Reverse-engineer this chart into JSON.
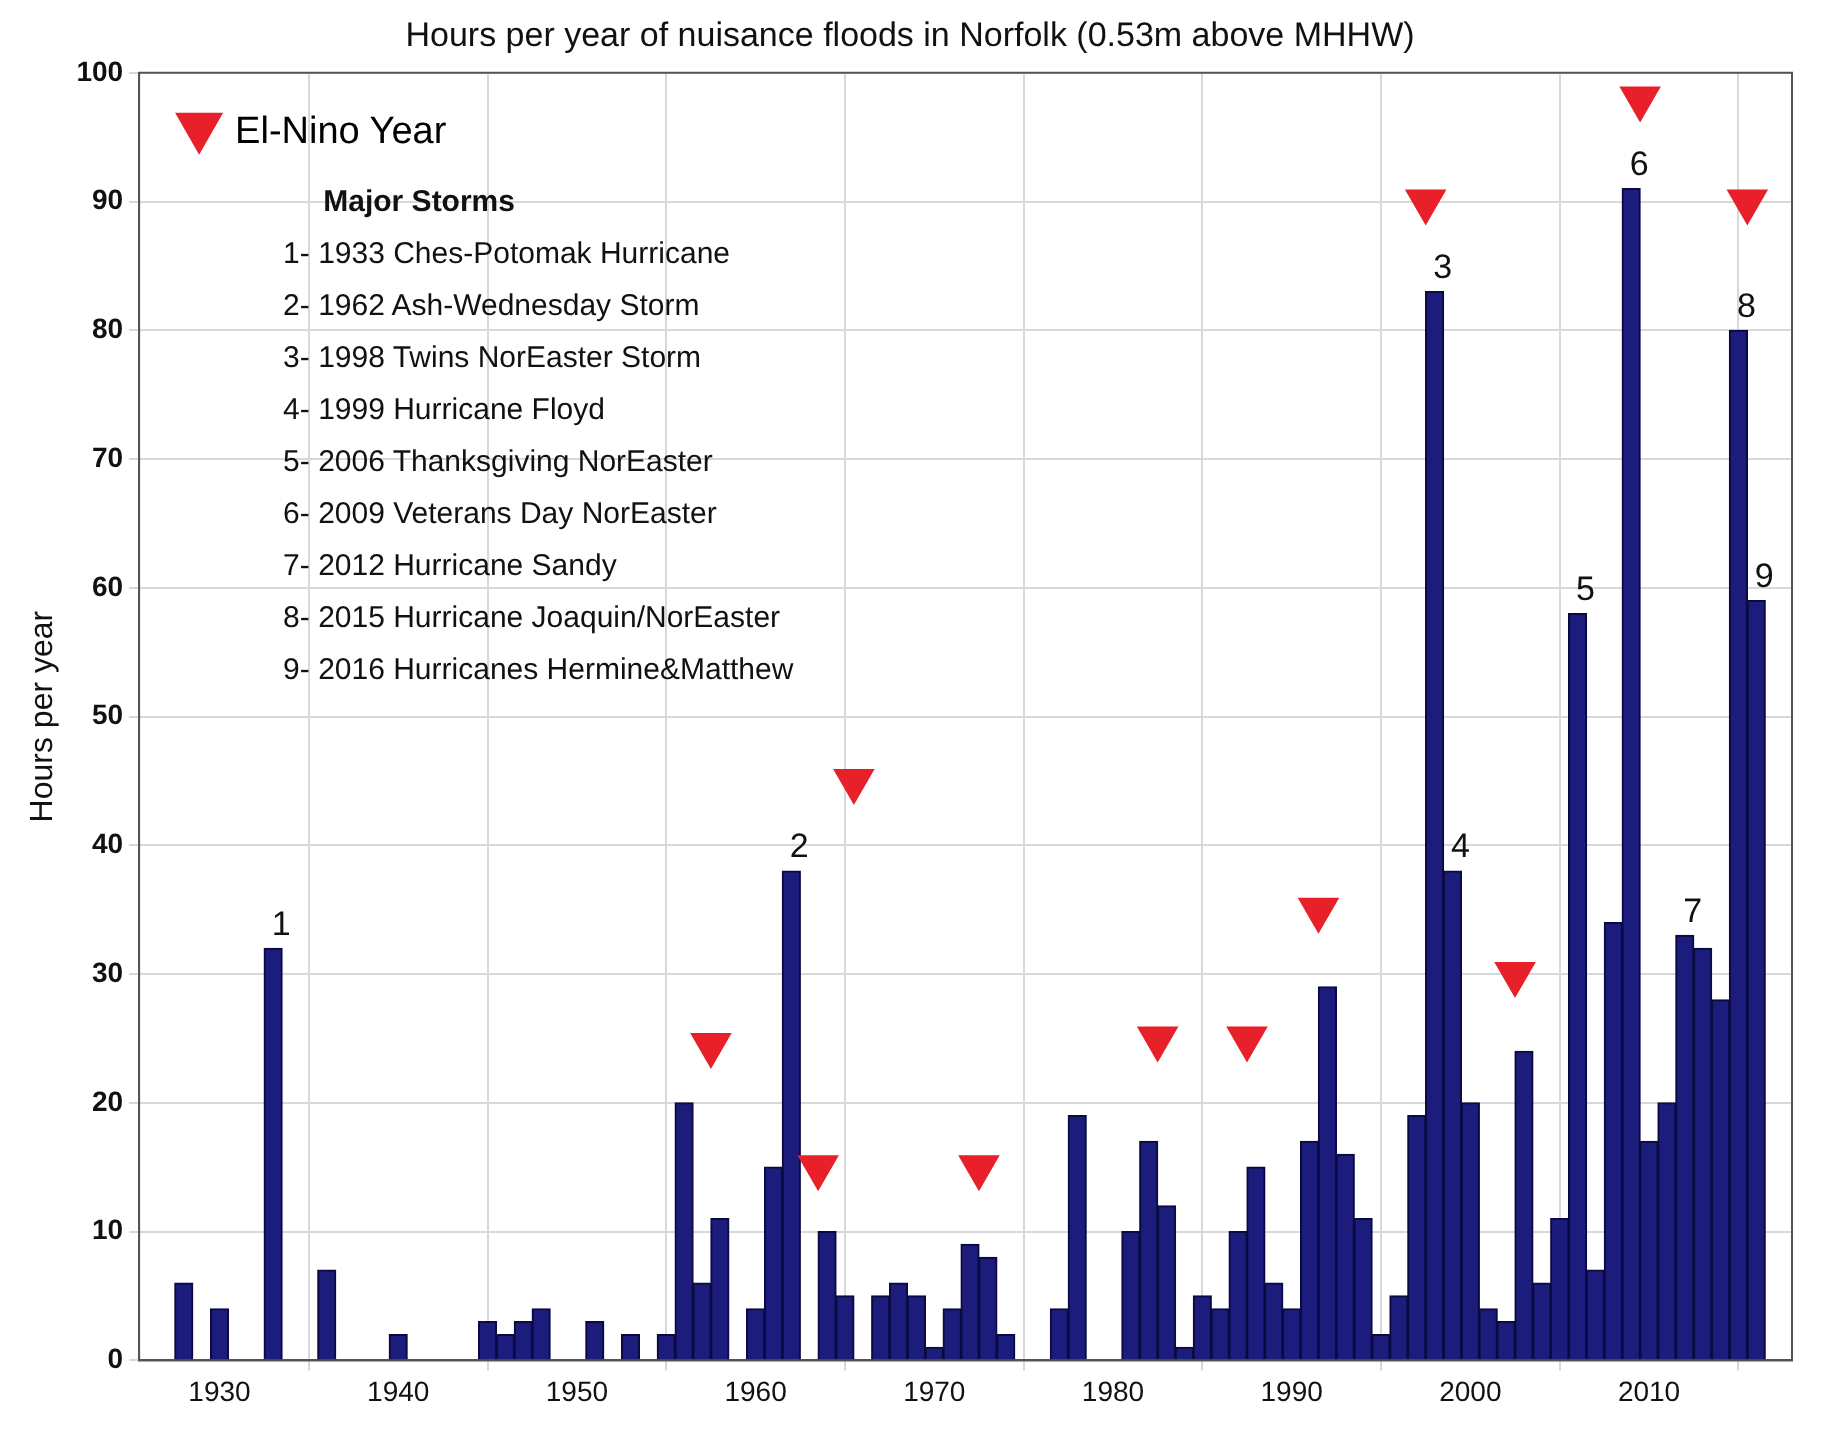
{
  "chart_data": {
    "type": "bar",
    "title": "Hours per year of nuisance floods in Norfolk (0.53m above MHHW)",
    "ylabel": "Hours per year",
    "x": [
      1928,
      1930,
      1933,
      1936,
      1940,
      1945,
      1946,
      1947,
      1948,
      1951,
      1953,
      1955,
      1956,
      1957,
      1958,
      1960,
      1961,
      1962,
      1964,
      1965,
      1967,
      1968,
      1969,
      1970,
      1971,
      1972,
      1973,
      1974,
      1977,
      1978,
      1981,
      1982,
      1983,
      1984,
      1985,
      1986,
      1987,
      1988,
      1989,
      1990,
      1991,
      1992,
      1993,
      1994,
      1995,
      1996,
      1997,
      1998,
      1999,
      2000,
      2001,
      2002,
      2003,
      2004,
      2005,
      2006,
      2007,
      2008,
      2009,
      2010,
      2011,
      2012,
      2013,
      2014,
      2015,
      2016
    ],
    "series": [
      {
        "color": "#1c1c7c",
        "values": [
          6,
          4,
          32,
          7,
          2,
          3,
          2,
          3,
          4,
          3,
          2,
          2,
          20,
          6,
          11,
          4,
          15,
          38,
          10,
          5,
          5,
          6,
          5,
          1,
          4,
          9,
          8,
          2,
          4,
          19,
          10,
          17,
          12,
          1,
          5,
          4,
          10,
          15,
          6,
          4,
          17,
          29,
          16,
          11,
          2,
          5,
          19,
          83,
          38,
          20,
          4,
          3,
          24,
          6,
          11,
          58,
          7,
          34,
          91,
          17,
          20,
          33,
          32,
          28,
          80,
          59
        ]
      },
      {
        "type": "scatter",
        "name": "El-Nino Year",
        "color": "#e8202a",
        "marker": "triangle",
        "x": [
          1957.5,
          1963.5,
          1965.5,
          1972.5,
          1982.5,
          1987.5,
          1991.5,
          1997.5,
          2002.5,
          2009.5,
          2015.5
        ],
        "values": [
          24.5,
          15,
          45,
          15,
          25,
          25,
          35,
          90,
          30,
          98,
          90
        ]
      }
    ],
    "xlim": [
      1925.5,
      2018
    ],
    "xticks": [
      1930,
      1940,
      1950,
      1960,
      1970,
      1980,
      1990,
      2000,
      2010
    ],
    "ylim": [
      0,
      100
    ],
    "yticks": [
      0,
      10,
      20,
      30,
      40,
      50,
      60,
      70,
      80,
      90,
      100
    ],
    "grid": true,
    "legend": "top left",
    "annotations": [
      "Major Storms",
      "1- 1933 Ches-Potomak Hurricane",
      "2- 1962 Ash-Wednesday Storm",
      "3- 1998 Twins NorEaster Storm",
      "4- 1999 Hurricane Floyd",
      "5- 2006 Thanksgiving NorEaster",
      "6- 2009 Veterans Day NorEaster",
      "7- 2012 Hurricane Sandy",
      "8- 2015 Hurricane Joaquin/NorEaster",
      "9- 2016 Hurricanes Hermine&Matthew",
      {
        "text": "1",
        "x": 1933,
        "y": 32
      },
      {
        "text": "2",
        "x": 1962,
        "y": 38
      },
      {
        "text": "3",
        "x": 1998,
        "y": 83
      },
      {
        "text": "4",
        "x": 1999,
        "y": 38
      },
      {
        "text": "5",
        "x": 2006,
        "y": 58
      },
      {
        "text": "6",
        "x": 2009,
        "y": 91
      },
      {
        "text": "7",
        "x": 2012,
        "y": 33
      },
      {
        "text": "8",
        "x": 2015,
        "y": 80
      },
      {
        "text": "9",
        "x": 2016,
        "y": 59
      }
    ]
  }
}
